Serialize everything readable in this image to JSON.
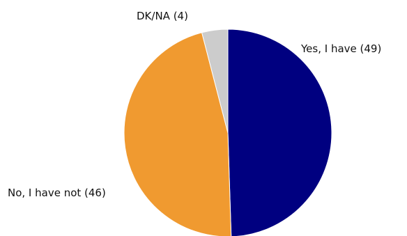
{
  "chart_data": {
    "type": "pie",
    "title": "",
    "slices": [
      {
        "label": "Yes, I have (49)",
        "value": 49,
        "color": "#000080"
      },
      {
        "label": "No, I have not (46)",
        "value": 46,
        "color": "#F09A30"
      },
      {
        "label": "DK/NA (4)",
        "value": 4,
        "color": "#CCCCCC"
      }
    ],
    "start": "12 o'clock",
    "direction": "clockwise",
    "legend": "none",
    "data_labels": "outside slices"
  }
}
